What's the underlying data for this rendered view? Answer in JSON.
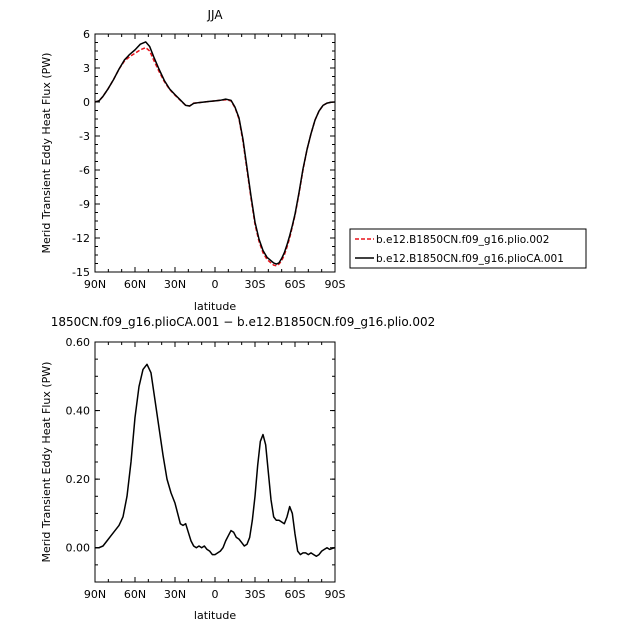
{
  "chart_data": [
    {
      "type": "line",
      "title": "JJA",
      "xlabel": "latitude",
      "ylabel": "Merid Transient Eddy Heat Flux (PW)",
      "x_tick_labels": [
        "90N",
        "60N",
        "30N",
        "0",
        "30S",
        "60S",
        "90S"
      ],
      "x_ticks_lat": [
        90,
        60,
        30,
        0,
        -30,
        -60,
        -90
      ],
      "xlim": [
        90,
        -90
      ],
      "ylim": [
        -15,
        6
      ],
      "y_ticks": [
        6,
        3,
        0,
        -3,
        -6,
        -9,
        -12,
        -15
      ],
      "y_tick_labels": [
        "6",
        "3",
        "0",
        "-3",
        "-6",
        "-9",
        "-12",
        "-15"
      ],
      "legend_position": "right",
      "series": [
        {
          "name": "b.e12.B1850CN.f09_g16.plio.002",
          "color": "#e8141c",
          "dash": "dashed",
          "x": [
            90,
            87,
            84,
            80,
            76,
            72,
            68,
            64,
            60,
            56,
            52,
            49,
            46,
            42,
            38,
            34,
            30,
            26,
            22,
            19,
            16,
            12,
            8,
            4,
            0,
            -4,
            -8,
            -12,
            -15,
            -18,
            -21,
            -24,
            -27,
            -30,
            -33,
            -36,
            -39,
            -42,
            -44,
            -46,
            -48,
            -50,
            -52,
            -54,
            -56,
            -58,
            -60,
            -63,
            -66,
            -69,
            -72,
            -75,
            -78,
            -81,
            -84,
            -87,
            -90
          ],
          "y": [
            0.0,
            0.1,
            0.5,
            1.2,
            2.0,
            2.9,
            3.6,
            4.0,
            4.3,
            4.6,
            4.8,
            4.5,
            3.7,
            2.7,
            1.8,
            1.1,
            0.6,
            0.15,
            -0.3,
            -0.35,
            -0.1,
            -0.05,
            0.0,
            0.05,
            0.1,
            0.15,
            0.2,
            0.1,
            -0.5,
            -1.5,
            -3.5,
            -6.0,
            -8.5,
            -10.8,
            -12.3,
            -13.3,
            -13.9,
            -14.2,
            -14.4,
            -14.45,
            -14.3,
            -14.0,
            -13.5,
            -12.8,
            -12.0,
            -11.0,
            -10.0,
            -8.1,
            -6.0,
            -4.2,
            -2.8,
            -1.6,
            -0.8,
            -0.3,
            -0.1,
            -0.02,
            0.0
          ]
        },
        {
          "name": "b.e12.B1850CN.f09_g16.plioCA.001",
          "color": "#000000",
          "dash": "solid",
          "x": [
            90,
            87,
            84,
            80,
            76,
            72,
            68,
            64,
            60,
            56,
            52,
            49,
            46,
            42,
            38,
            34,
            30,
            26,
            22,
            19,
            16,
            12,
            8,
            4,
            0,
            -4,
            -8,
            -12,
            -15,
            -18,
            -21,
            -24,
            -27,
            -30,
            -33,
            -36,
            -39,
            -42,
            -44,
            -46,
            -48,
            -50,
            -52,
            -54,
            -56,
            -58,
            -60,
            -63,
            -66,
            -69,
            -72,
            -75,
            -78,
            -81,
            -84,
            -87,
            -90
          ],
          "y": [
            0.0,
            0.1,
            0.5,
            1.2,
            2.0,
            2.9,
            3.7,
            4.2,
            4.6,
            5.1,
            5.3,
            4.9,
            4.0,
            2.9,
            1.9,
            1.15,
            0.65,
            0.18,
            -0.3,
            -0.35,
            -0.12,
            -0.05,
            0.0,
            0.05,
            0.1,
            0.15,
            0.25,
            0.15,
            -0.45,
            -1.4,
            -3.3,
            -5.8,
            -8.3,
            -10.6,
            -12.1,
            -13.1,
            -13.7,
            -14.0,
            -14.2,
            -14.3,
            -14.2,
            -13.8,
            -13.3,
            -12.6,
            -11.8,
            -10.9,
            -9.9,
            -8.0,
            -5.9,
            -4.2,
            -2.8,
            -1.6,
            -0.8,
            -0.3,
            -0.1,
            -0.02,
            0.0
          ]
        }
      ]
    },
    {
      "type": "line",
      "title": "1850CN.f09_g16.plioCA.001 − b.e12.B1850CN.f09_g16.plio.002",
      "xlabel": "latitude",
      "ylabel": "Merid Transient Eddy Heat Flux (PW)",
      "x_tick_labels": [
        "90N",
        "60N",
        "30N",
        "0",
        "30S",
        "60S",
        "90S"
      ],
      "x_ticks_lat": [
        90,
        60,
        30,
        0,
        -30,
        -60,
        -90
      ],
      "xlim": [
        90,
        -90
      ],
      "ylim": [
        -0.1,
        0.6
      ],
      "y_ticks": [
        0.6,
        0.4,
        0.2,
        0.0
      ],
      "y_tick_labels": [
        "0.60",
        "0.40",
        "0.20",
        "0.00"
      ],
      "series": [
        {
          "color": "#000000",
          "dash": "solid",
          "x": [
            90,
            87,
            84,
            81,
            78,
            75,
            72,
            69,
            66,
            63,
            60,
            57,
            54,
            51,
            48,
            45,
            42,
            39,
            36,
            33,
            30,
            28,
            26,
            24,
            22,
            20,
            18,
            16,
            14,
            12,
            10,
            8,
            6,
            4,
            2,
            0,
            -2,
            -4,
            -6,
            -8,
            -10,
            -12,
            -14,
            -16,
            -18,
            -20,
            -22,
            -24,
            -26,
            -28,
            -30,
            -32,
            -34,
            -36,
            -38,
            -40,
            -42,
            -44,
            -46,
            -48,
            -50,
            -52,
            -54,
            -56,
            -58,
            -60,
            -62,
            -64,
            -66,
            -68,
            -70,
            -72,
            -74,
            -76,
            -78,
            -80,
            -82,
            -84,
            -86,
            -88,
            -90
          ],
          "y": [
            0.0,
            0.0,
            0.005,
            0.02,
            0.035,
            0.05,
            0.065,
            0.09,
            0.15,
            0.25,
            0.38,
            0.47,
            0.52,
            0.535,
            0.51,
            0.43,
            0.35,
            0.27,
            0.2,
            0.16,
            0.13,
            0.1,
            0.07,
            0.065,
            0.07,
            0.045,
            0.02,
            0.005,
            0.0,
            0.005,
            0.0,
            0.005,
            -0.005,
            -0.01,
            -0.02,
            -0.02,
            -0.015,
            -0.01,
            0.0,
            0.02,
            0.035,
            0.05,
            0.045,
            0.03,
            0.025,
            0.015,
            0.005,
            0.01,
            0.03,
            0.08,
            0.15,
            0.24,
            0.31,
            0.33,
            0.3,
            0.22,
            0.14,
            0.09,
            0.08,
            0.08,
            0.075,
            0.07,
            0.09,
            0.12,
            0.1,
            0.04,
            -0.01,
            -0.02,
            -0.015,
            -0.015,
            -0.02,
            -0.015,
            -0.02,
            -0.025,
            -0.02,
            -0.01,
            -0.005,
            0.0,
            -0.005,
            -0.002,
            0.0
          ]
        }
      ]
    }
  ]
}
